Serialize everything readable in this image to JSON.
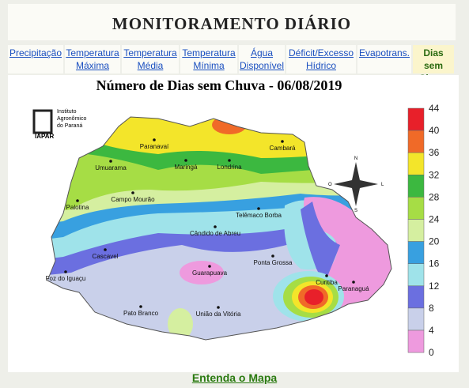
{
  "header": {
    "title": "MONITORAMENTO DIÁRIO"
  },
  "nav": [
    {
      "lines": [
        "Precipitação"
      ]
    },
    {
      "lines": [
        "Temperatura",
        "Máxima"
      ]
    },
    {
      "lines": [
        "Temperatura",
        "Média"
      ]
    },
    {
      "lines": [
        "Temperatura",
        "Mínima"
      ]
    },
    {
      "lines": [
        "Água",
        "Disponível"
      ]
    },
    {
      "lines": [
        "Déficit/Excesso",
        "Hídrico"
      ]
    },
    {
      "lines": [
        "Evapotrans."
      ]
    },
    {
      "lines": [
        "Dias sem",
        "Chuva"
      ]
    }
  ],
  "map": {
    "title": "Número de Dias sem Chuva - 06/08/2019",
    "logo": {
      "lines": [
        "Instituto",
        "Agronômico",
        "do Paraná"
      ],
      "abbr": "IAPAR"
    },
    "compass": [
      "N",
      "L",
      "S",
      "O"
    ],
    "cities": [
      {
        "name": "Paranavaí"
      },
      {
        "name": "Cambará"
      },
      {
        "name": "Umuarama"
      },
      {
        "name": "Maringá"
      },
      {
        "name": "Londrina"
      },
      {
        "name": "Campo Mourão"
      },
      {
        "name": "Palotina"
      },
      {
        "name": "Telêmaco Borba"
      },
      {
        "name": "Cândido de Abreu"
      },
      {
        "name": "Cascavel"
      },
      {
        "name": "Ponta Grossa"
      },
      {
        "name": "Guarapuava"
      },
      {
        "name": "Foz do Iguaçu"
      },
      {
        "name": "Curitiba"
      },
      {
        "name": "Paranaguá"
      },
      {
        "name": "Pato Branco"
      },
      {
        "name": "União da Vitória"
      }
    ],
    "legend": [
      "44",
      "40",
      "36",
      "32",
      "28",
      "24",
      "20",
      "16",
      "12",
      "8",
      "4",
      "0"
    ]
  },
  "footer": {
    "link": "Entenda o Mapa"
  }
}
